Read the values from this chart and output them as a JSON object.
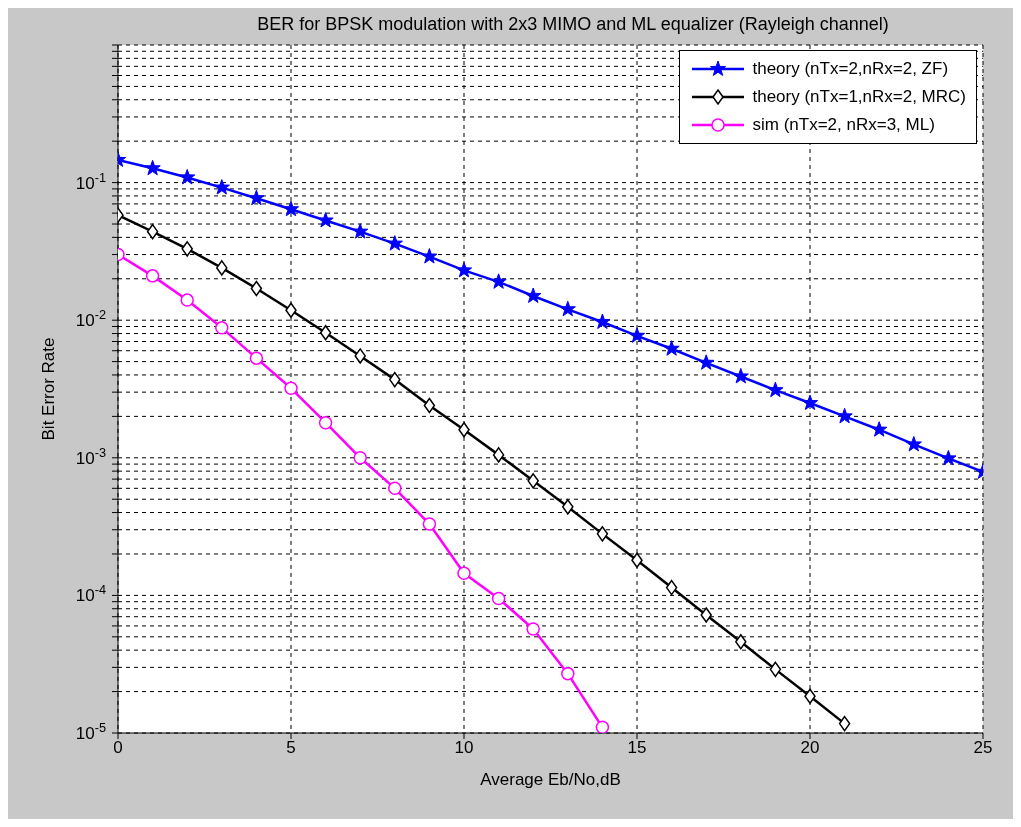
{
  "chart_data": {
    "type": "line",
    "title": "BER for BPSK modulation with 2x3 MIMO and ML equalizer (Rayleigh channel)",
    "xlabel": "Average Eb/No,dB",
    "ylabel": "Bit Error Rate",
    "log": "y",
    "grid": true,
    "legend": "top right",
    "line_style": "solid",
    "xlim": [
      0,
      25
    ],
    "xticks": [
      0,
      5,
      10,
      15,
      20,
      25
    ],
    "ylim": [
      1e-05,
      1
    ],
    "yticks": [
      {
        "value": 1e-05,
        "label": "10$^{-5}$"
      },
      {
        "value": 2e-05,
        "label": null
      },
      {
        "value": 3e-05,
        "label": null
      },
      {
        "value": 4e-05,
        "label": null
      },
      {
        "value": 5e-05,
        "label": null
      },
      {
        "value": 6e-05,
        "label": null
      },
      {
        "value": 7e-05,
        "label": null
      },
      {
        "value": 8e-05,
        "label": null
      },
      {
        "value": 9e-05,
        "label": null
      },
      {
        "value": 0.0001,
        "label": "10$^{-4}$"
      },
      {
        "value": 0.0002,
        "label": null
      },
      {
        "value": 0.0003,
        "label": null
      },
      {
        "value": 0.0004,
        "label": null
      },
      {
        "value": 0.0005,
        "label": null
      },
      {
        "value": 0.0006,
        "label": null
      },
      {
        "value": 0.0007,
        "label": null
      },
      {
        "value": 0.0008,
        "label": null
      },
      {
        "value": 0.0009,
        "label": null
      },
      {
        "value": 0.001,
        "label": "10$^{-3}$"
      },
      {
        "value": 0.002,
        "label": null
      },
      {
        "value": 0.003,
        "label": null
      },
      {
        "value": 0.004,
        "label": null
      },
      {
        "value": 0.005,
        "label": null
      },
      {
        "value": 0.006,
        "label": null
      },
      {
        "value": 0.007,
        "label": null
      },
      {
        "value": 0.008,
        "label": null
      },
      {
        "value": 0.009,
        "label": null
      },
      {
        "value": 0.01,
        "label": "10$^{-2}$"
      },
      {
        "value": 0.02,
        "label": null
      },
      {
        "value": 0.03,
        "label": null
      },
      {
        "value": 0.04,
        "label": null
      },
      {
        "value": 0.05,
        "label": null
      },
      {
        "value": 0.06,
        "label": null
      },
      {
        "value": 0.07,
        "label": null
      },
      {
        "value": 0.08,
        "label": null
      },
      {
        "value": 0.09,
        "label": null
      },
      {
        "value": 0.1,
        "label": "10$^{-1}$"
      },
      {
        "value": 0.2,
        "label": null
      },
      {
        "value": 0.3,
        "label": null
      },
      {
        "value": 0.4,
        "label": null
      },
      {
        "value": 0.5,
        "label": null
      },
      {
        "value": 0.6,
        "label": null
      },
      {
        "value": 0.7,
        "label": null
      },
      {
        "value": 0.8,
        "label": null
      },
      {
        "value": 0.9,
        "label": null
      },
      {
        "value": 1,
        "label": null
      }
    ],
    "series": [
      {
        "name": "theory (nTx=2,nRx=2, ZF)",
        "color": "#0000ff",
        "marker": "star",
        "x": [
          0,
          1,
          2,
          3,
          4,
          5,
          6,
          7,
          8,
          9,
          10,
          11,
          12,
          13,
          14,
          15,
          16,
          17,
          18,
          19,
          20,
          21,
          22,
          23,
          24,
          25
        ],
        "values": [
          0.146,
          0.127,
          0.109,
          0.092,
          0.077,
          0.064,
          0.053,
          0.044,
          0.036,
          0.029,
          0.023,
          0.019,
          0.015,
          0.012,
          0.0097,
          0.0077,
          0.0062,
          0.0049,
          0.0039,
          0.0031,
          0.0025,
          0.002,
          0.0016,
          0.00125,
          0.00099,
          0.00079
        ]
      },
      {
        "name": "theory (nTx=1,nRx=2, MRC)",
        "color": "#000000",
        "marker": "diamond",
        "x": [
          0,
          1,
          2,
          3,
          4,
          5,
          6,
          7,
          8,
          9,
          10,
          11,
          12,
          13,
          14,
          15,
          16,
          17,
          18,
          19,
          20,
          21
        ],
        "values": [
          0.058,
          0.044,
          0.033,
          0.024,
          0.017,
          0.0118,
          0.0081,
          0.0055,
          0.0037,
          0.0024,
          0.0016,
          0.00105,
          0.00068,
          0.00044,
          0.00028,
          0.00018,
          0.000114,
          7.2e-05,
          4.6e-05,
          2.9e-05,
          1.85e-05,
          1.17e-05
        ]
      },
      {
        "name": "sim (nTx=2, nRx=3, ML)",
        "color": "#ff00ff",
        "marker": "circle",
        "x": [
          0,
          1,
          2,
          3,
          4,
          5,
          6,
          7,
          8,
          9,
          10,
          11,
          12,
          13,
          14
        ],
        "values": [
          0.03,
          0.021,
          0.014,
          0.0088,
          0.0053,
          0.0032,
          0.0018,
          0.001,
          0.0006,
          0.00033,
          0.000145,
          9.5e-05,
          5.7e-05,
          2.7e-05,
          1.1e-05
        ]
      }
    ]
  }
}
